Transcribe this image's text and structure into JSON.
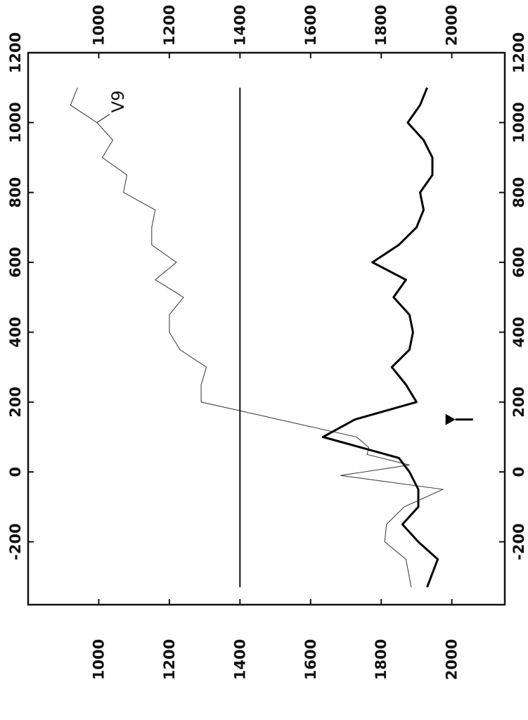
{
  "chart_data": {
    "type": "line",
    "orientation": "rotated-90-clockwise",
    "grid": false,
    "x_axis": {
      "ticks": [
        -200,
        0,
        200,
        400,
        600,
        800,
        1000,
        1200
      ],
      "tick_labels": [
        "-200",
        "0",
        "200",
        "400",
        "600",
        "800",
        "1000",
        "1200"
      ],
      "range": [
        -380,
        1200
      ]
    },
    "y_axis": {
      "ticks": [
        1000,
        1200,
        1400,
        1600,
        1800,
        2000
      ],
      "tick_labels": [
        "1000",
        "1200",
        "1400",
        "1600",
        "1800",
        "2000"
      ],
      "range": [
        800,
        2150
      ]
    },
    "series": [
      {
        "name": "V9",
        "style": "thin",
        "points": [
          [
            -330,
            1885
          ],
          [
            -250,
            1870
          ],
          [
            -200,
            1810
          ],
          [
            -150,
            1815
          ],
          [
            -100,
            1865
          ],
          [
            -50,
            1975
          ],
          [
            -10,
            1685
          ],
          [
            20,
            1880
          ],
          [
            50,
            1760
          ],
          [
            70,
            1765
          ],
          [
            100,
            1730
          ],
          [
            200,
            1290
          ],
          [
            250,
            1290
          ],
          [
            300,
            1305
          ],
          [
            350,
            1230
          ],
          [
            400,
            1200
          ],
          [
            450,
            1200
          ],
          [
            500,
            1240
          ],
          [
            550,
            1160
          ],
          [
            600,
            1220
          ],
          [
            650,
            1150
          ],
          [
            700,
            1150
          ],
          [
            750,
            1160
          ],
          [
            800,
            1070
          ],
          [
            850,
            1080
          ],
          [
            900,
            1010
          ],
          [
            950,
            1040
          ],
          [
            1000,
            995
          ],
          [
            1050,
            920
          ],
          [
            1100,
            940
          ]
        ]
      },
      {
        "name": "",
        "style": "thick",
        "points": [
          [
            -330,
            1930
          ],
          [
            -250,
            1960
          ],
          [
            -200,
            1905
          ],
          [
            -150,
            1860
          ],
          [
            -100,
            1905
          ],
          [
            -50,
            1905
          ],
          [
            0,
            1880
          ],
          [
            40,
            1850
          ],
          [
            100,
            1635
          ],
          [
            150,
            1725
          ],
          [
            200,
            1900
          ],
          [
            250,
            1870
          ],
          [
            300,
            1830
          ],
          [
            350,
            1880
          ],
          [
            400,
            1890
          ],
          [
            450,
            1880
          ],
          [
            500,
            1835
          ],
          [
            550,
            1870
          ],
          [
            600,
            1775
          ],
          [
            650,
            1850
          ],
          [
            700,
            1900
          ],
          [
            750,
            1920
          ],
          [
            800,
            1910
          ],
          [
            850,
            1945
          ],
          [
            900,
            1945
          ],
          [
            950,
            1920
          ],
          [
            1000,
            1875
          ],
          [
            1050,
            1910
          ],
          [
            1100,
            1930
          ]
        ]
      },
      {
        "name": "",
        "style": "reference",
        "points": [
          [
            -330,
            1400
          ],
          [
            1100,
            1400
          ]
        ]
      }
    ],
    "annotations": [
      {
        "type": "arrow",
        "label": "",
        "x": 150,
        "from_y": 2060,
        "to_y": 2010
      }
    ]
  }
}
